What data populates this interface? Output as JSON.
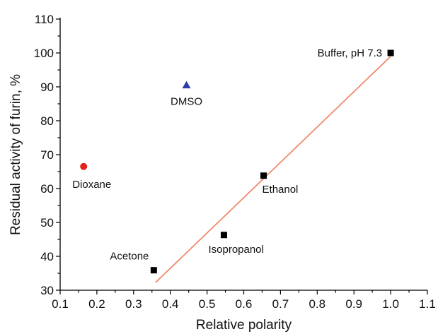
{
  "chart_data": {
    "type": "scatter",
    "title": "",
    "xlabel": "Relative polarity",
    "ylabel": "Residual activity of furin, %",
    "xlim": [
      0.1,
      1.1
    ],
    "ylim": [
      30,
      110
    ],
    "x_ticks": [
      "0.1",
      "0.2",
      "0.3",
      "0.4",
      "0.5",
      "0.6",
      "0.7",
      "0.8",
      "0.9",
      "1.0",
      "1.1"
    ],
    "y_ticks": [
      "30",
      "40",
      "50",
      "60",
      "70",
      "80",
      "90",
      "100",
      "110"
    ],
    "grid": false,
    "points": [
      {
        "label": "Buffer, pH 7.3",
        "x": 1.0,
        "y": 100,
        "marker": "square",
        "color": "#000000"
      },
      {
        "label": "DMSO",
        "x": 0.444,
        "y": 90.5,
        "marker": "triangle",
        "color": "#2f3fa8"
      },
      {
        "label": "Dioxane",
        "x": 0.164,
        "y": 66.5,
        "marker": "circle",
        "color": "#e0231c"
      },
      {
        "label": "Ethanol",
        "x": 0.654,
        "y": 63.8,
        "marker": "square",
        "color": "#000000"
      },
      {
        "label": "Isopropanol",
        "x": 0.546,
        "y": 46.3,
        "marker": "square",
        "color": "#000000"
      },
      {
        "label": "Acetone",
        "x": 0.355,
        "y": 35.9,
        "marker": "square",
        "color": "#000000"
      }
    ],
    "fit_line": {
      "x": [
        0.36,
        1.0
      ],
      "y": [
        32.3,
        99.0
      ],
      "color": "#f08a6a"
    }
  }
}
